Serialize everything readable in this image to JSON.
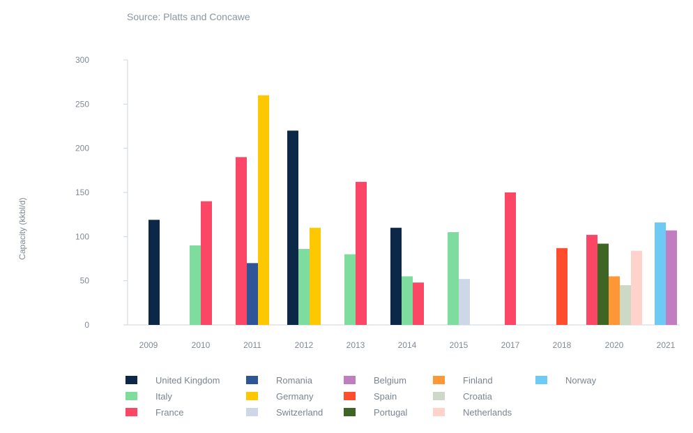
{
  "source_note": "Source: Platts and Concawe",
  "chart_data": {
    "type": "bar",
    "ylabel": "Capacity (kkbl/d)",
    "xlabel": "",
    "ylim": [
      0,
      300
    ],
    "yticks": [
      0,
      50,
      100,
      150,
      200,
      250,
      300
    ],
    "categories": [
      "2009",
      "2010",
      "2011",
      "2012",
      "2013",
      "2014",
      "2015",
      "2017",
      "2018",
      "2020",
      "2021"
    ],
    "series": [
      {
        "name": "United Kingdom",
        "color": "#0d2749"
      },
      {
        "name": "Italy",
        "color": "#7ddc9e"
      },
      {
        "name": "France",
        "color": "#fb4666"
      },
      {
        "name": "Romania",
        "color": "#2e5597"
      },
      {
        "name": "Germany",
        "color": "#fdc800"
      },
      {
        "name": "Switzerland",
        "color": "#cdd7e8"
      },
      {
        "name": "Belgium",
        "color": "#c07ec0"
      },
      {
        "name": "Spain",
        "color": "#ff4d2d"
      },
      {
        "name": "Portugal",
        "color": "#3e6523"
      },
      {
        "name": "Finland",
        "color": "#ff9736"
      },
      {
        "name": "Croatia",
        "color": "#ced8c6"
      },
      {
        "name": "Netherlands",
        "color": "#ffd3cb"
      },
      {
        "name": "Norway",
        "color": "#6ccaf4"
      }
    ],
    "bars": [
      {
        "category": "2009",
        "series": "United Kingdom",
        "value": 119
      },
      {
        "category": "2010",
        "series": "Italy",
        "value": 90
      },
      {
        "category": "2010",
        "series": "France",
        "value": 140
      },
      {
        "category": "2011",
        "series": "France",
        "value": 190
      },
      {
        "category": "2011",
        "series": "Romania",
        "value": 70
      },
      {
        "category": "2011",
        "series": "Germany",
        "value": 260
      },
      {
        "category": "2012",
        "series": "United Kingdom",
        "value": 220
      },
      {
        "category": "2012",
        "series": "Italy",
        "value": 86
      },
      {
        "category": "2012",
        "series": "Germany",
        "value": 110
      },
      {
        "category": "2013",
        "series": "Italy",
        "value": 80
      },
      {
        "category": "2013",
        "series": "France",
        "value": 162
      },
      {
        "category": "2014",
        "series": "United Kingdom",
        "value": 110
      },
      {
        "category": "2014",
        "series": "Italy",
        "value": 55
      },
      {
        "category": "2014",
        "series": "France",
        "value": 48
      },
      {
        "category": "2015",
        "series": "Italy",
        "value": 105
      },
      {
        "category": "2015",
        "series": "Switzerland",
        "value": 52
      },
      {
        "category": "2017",
        "series": "France",
        "value": 150
      },
      {
        "category": "2018",
        "series": "Spain",
        "value": 87
      },
      {
        "category": "2020",
        "series": "France",
        "value": 102
      },
      {
        "category": "2020",
        "series": "Portugal",
        "value": 92
      },
      {
        "category": "2020",
        "series": "Finland",
        "value": 55
      },
      {
        "category": "2020",
        "series": "Croatia",
        "value": 45
      },
      {
        "category": "2020",
        "series": "Netherlands",
        "value": 84
      },
      {
        "category": "2021",
        "series": "Norway",
        "value": 116
      },
      {
        "category": "2021",
        "series": "Belgium",
        "value": 107
      }
    ],
    "legend": {
      "placement": "bottom",
      "columns": [
        [
          "United Kingdom",
          "Italy",
          "France"
        ],
        [
          "Romania",
          "Germany",
          "Switzerland"
        ],
        [
          "Belgium",
          "Spain",
          "Portugal"
        ],
        [
          "Finland",
          "Croatia",
          "Netherlands"
        ],
        [
          "Norway"
        ]
      ]
    }
  }
}
